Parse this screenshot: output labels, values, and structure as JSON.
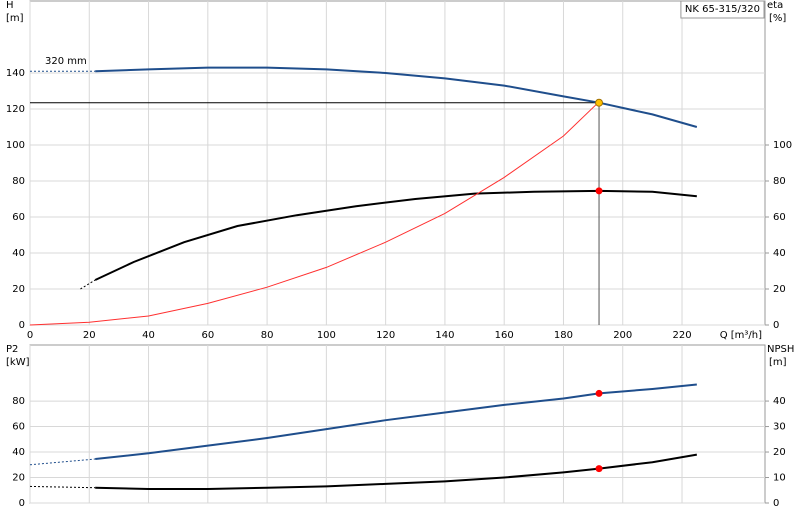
{
  "chart_data": [
    {
      "type": "line",
      "title": "NK 65-315/320",
      "xlabel": "Q [m³/h]",
      "ylabel": [
        "H",
        "[m]"
      ],
      "y2label": [
        "eta",
        "[%]"
      ],
      "xlim": [
        0,
        248
      ],
      "xticks": [
        0,
        20,
        40,
        60,
        80,
        100,
        120,
        140,
        160,
        180,
        200,
        220
      ],
      "show_xtick_labels": true,
      "ylim": [
        0,
        180
      ],
      "yticks": [
        0,
        20,
        40,
        60,
        80,
        100,
        120,
        140
      ],
      "y2lim": [
        0,
        180
      ],
      "y2ticks": [
        0,
        20,
        40,
        60,
        80,
        100
      ],
      "grid": true,
      "series": [
        {
          "color": "#1f4e8c",
          "dashed": true,
          "x": [
            0,
            22
          ],
          "values": [
            141,
            141
          ]
        },
        {
          "name": "320 mm",
          "color": "#1f4e8c",
          "x": [
            22,
            40,
            60,
            80,
            100,
            120,
            140,
            160,
            180,
            192,
            210,
            225
          ],
          "values": [
            141,
            142,
            143,
            143,
            142,
            140,
            137,
            133,
            127,
            123.5,
            117,
            110
          ]
        },
        {
          "color": "#000000",
          "dashed": true,
          "axis": "y2",
          "x": [
            17,
            22
          ],
          "values": [
            20,
            25
          ]
        },
        {
          "color": "#000000",
          "axis": "y2",
          "x": [
            22,
            35,
            52,
            70,
            90,
            110,
            130,
            150,
            170,
            192,
            210,
            225
          ],
          "values": [
            25,
            35,
            46,
            55,
            61,
            66,
            70,
            73,
            74,
            74.5,
            74,
            71.5
          ]
        },
        {
          "color": "#ff3030",
          "thin": true,
          "x": [
            0,
            20,
            40,
            60,
            80,
            100,
            120,
            140,
            160,
            180,
            192
          ],
          "values": [
            0,
            1.5,
            5,
            12,
            21,
            32,
            46,
            62,
            82,
            105,
            124
          ]
        }
      ],
      "markers": [
        {
          "x": 192,
          "y": 123.5,
          "color": "#ffc000",
          "guide": true
        },
        {
          "x": 192,
          "y": 74.5,
          "color": "#ff0000",
          "axis": "y2"
        }
      ]
    },
    {
      "type": "line",
      "ylabel": [
        "P2",
        "[kW]"
      ],
      "y2label": [
        "NPSH",
        "[m]"
      ],
      "xlim": [
        0,
        248
      ],
      "xticks": [
        0,
        20,
        40,
        60,
        80,
        100,
        120,
        140,
        160,
        180,
        200,
        220
      ],
      "show_xtick_labels": false,
      "ylim": [
        0,
        124
      ],
      "yticks": [
        0,
        20,
        40,
        60,
        80
      ],
      "y2lim": [
        0,
        62
      ],
      "y2ticks": [
        0,
        10,
        20,
        30,
        40
      ],
      "grid": true,
      "series": [
        {
          "color": "#1f4e8c",
          "dashed": true,
          "x": [
            0,
            22
          ],
          "values": [
            30,
            34.5
          ]
        },
        {
          "color": "#1f4e8c",
          "x": [
            22,
            40,
            60,
            80,
            100,
            120,
            140,
            160,
            180,
            192,
            210,
            225
          ],
          "values": [
            34.5,
            39,
            45,
            51,
            58,
            65,
            71,
            77,
            82,
            86,
            89.5,
            93
          ]
        },
        {
          "color": "#000000",
          "dashed": true,
          "axis": "y2",
          "x": [
            0,
            22
          ],
          "values": [
            6.5,
            6
          ]
        },
        {
          "color": "#000000",
          "axis": "y2",
          "x": [
            22,
            40,
            60,
            80,
            100,
            120,
            140,
            160,
            180,
            192,
            210,
            225
          ],
          "values": [
            6,
            5.5,
            5.5,
            6,
            6.5,
            7.5,
            8.5,
            10,
            12,
            13.5,
            16,
            19
          ]
        }
      ],
      "markers": [
        {
          "x": 192,
          "y": 86,
          "color": "#ff0000"
        },
        {
          "x": 192,
          "y": 13.5,
          "color": "#ff0000",
          "axis": "y2"
        }
      ]
    }
  ]
}
